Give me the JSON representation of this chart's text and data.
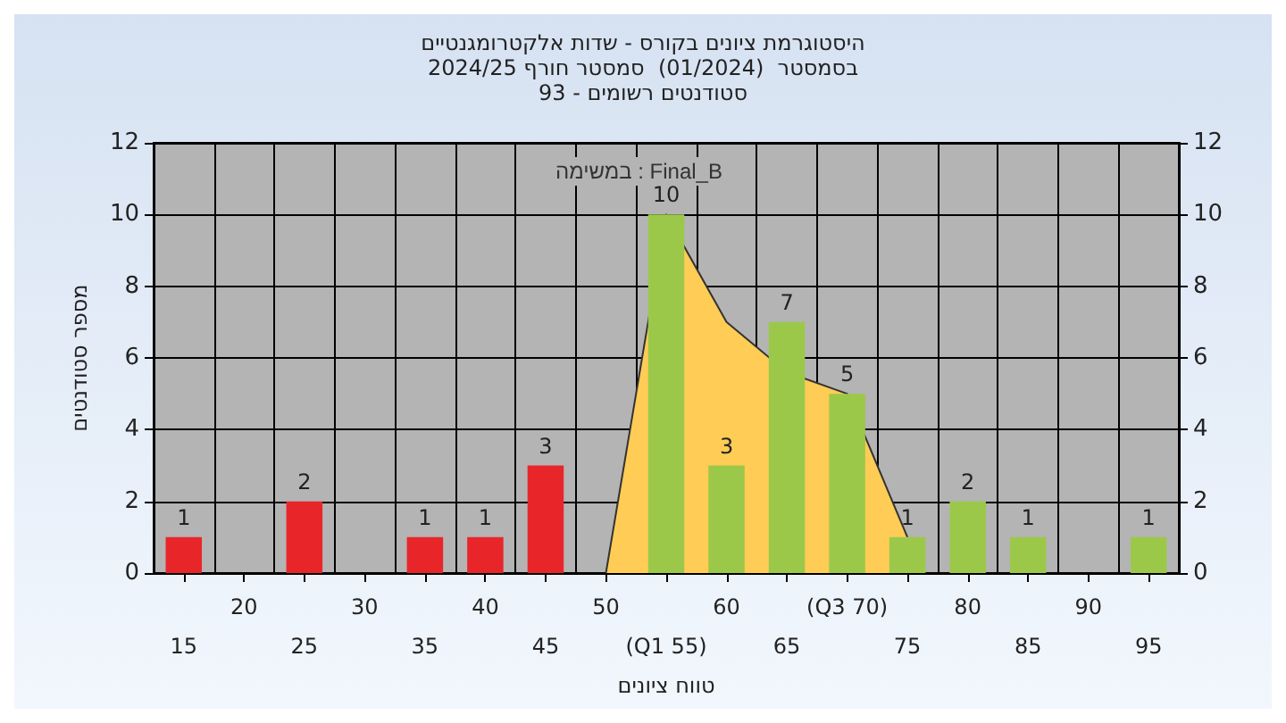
{
  "chart_data": {
    "type": "bar",
    "title": "היסטוגרמת ציונים בקורס - שדות אלקטרומגנטיים",
    "subtitle": "בסמסטר  (01/2024)  סמסטר חורף 2024/25\nסטודנטים רשומים - 93",
    "xlabel": "טווח ציונים",
    "ylabel": "מספר סטודנטים",
    "annotations": [
      "במשימה : Final_B"
    ],
    "categories": [
      "15",
      "20",
      "25",
      "30",
      "35",
      "40",
      "45",
      "50",
      "(Q1 55)",
      "60",
      "65",
      "(Q3 70)",
      "75",
      "80",
      "85",
      "90",
      "95"
    ],
    "series": [
      {
        "type": "area",
        "color": "#ffcc55",
        "values": [
          null,
          null,
          null,
          null,
          null,
          null,
          null,
          0,
          10,
          7,
          5.6,
          5,
          1,
          null,
          null,
          null,
          null
        ]
      },
      {
        "values": [
          1,
          0,
          2,
          0,
          1,
          1,
          3,
          0,
          10,
          3,
          7,
          5,
          1,
          2,
          1,
          0,
          1
        ],
        "colors": [
          "#e8262a",
          "#e8262a",
          "#e8262a",
          "#e8262a",
          "#e8262a",
          "#e8262a",
          "#e8262a",
          "#e8262a",
          "#9cc84a",
          "#9cc84a",
          "#9cc84a",
          "#9cc84a",
          "#9cc84a",
          "#9cc84a",
          "#9cc84a",
          "#9cc84a",
          "#9cc84a"
        ],
        "value_labels": [
          "1",
          null,
          "2",
          null,
          "1",
          "1",
          "3",
          null,
          "10",
          "3",
          "7",
          "5",
          "1",
          "2",
          "1",
          null,
          "1"
        ]
      }
    ],
    "ylim": [
      0,
      12
    ],
    "yticks": [
      0,
      2,
      4,
      6,
      8,
      10,
      12
    ],
    "y2lim": [
      0,
      12
    ],
    "y2ticks": [
      0,
      2,
      4,
      6,
      8,
      10,
      12
    ],
    "grid": true
  }
}
